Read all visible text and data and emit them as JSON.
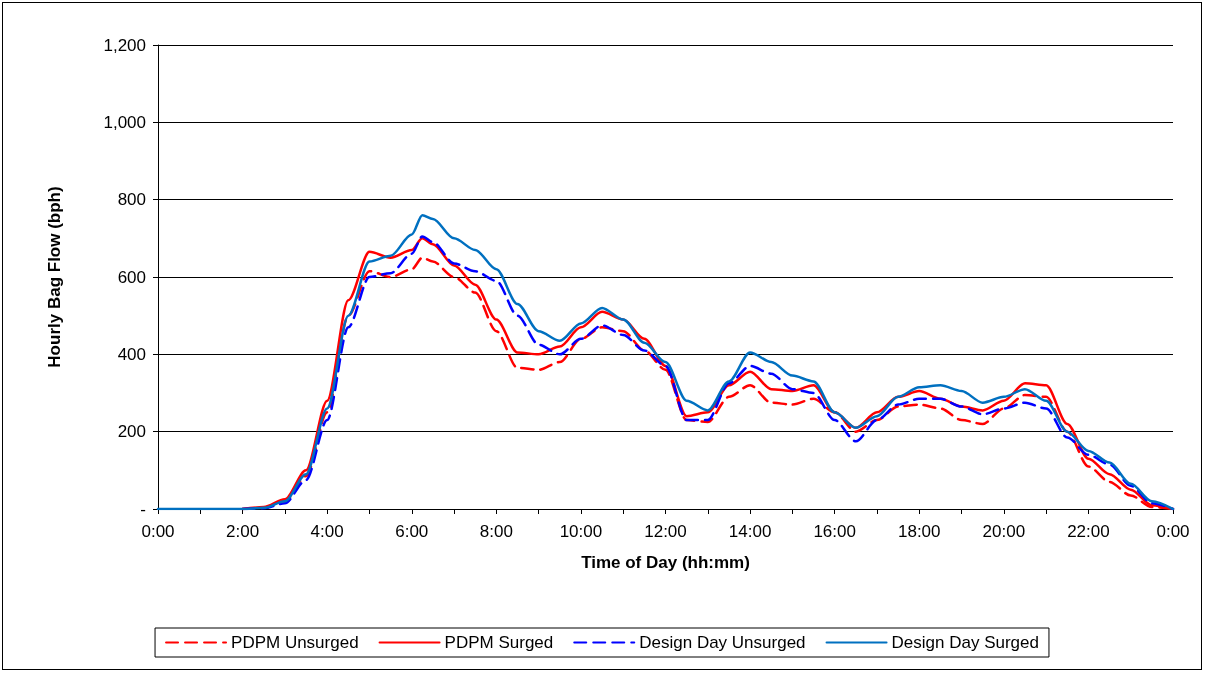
{
  "chart_data": {
    "type": "line",
    "xlabel": "Time of Day (hh:mm)",
    "ylabel": "Hourly Bag Flow (bph)",
    "x": [
      0,
      0.5,
      1,
      1.5,
      2,
      2.5,
      3,
      3.5,
      4,
      4.5,
      5,
      5.5,
      6,
      6.25,
      6.5,
      7,
      7.5,
      8,
      8.5,
      9,
      9.5,
      10,
      10.5,
      11,
      11.5,
      12,
      12.5,
      13,
      13.5,
      14,
      14.5,
      15,
      15.5,
      16,
      16.5,
      17,
      17.5,
      18,
      18.5,
      19,
      19.5,
      20,
      20.5,
      21,
      21.5,
      22,
      22.5,
      23,
      23.5,
      24
    ],
    "series": [
      {
        "name": "PDPM Unsurged",
        "color": "#ff0000",
        "line_style": "dashed",
        "values": [
          null,
          null,
          null,
          null,
          0,
          3,
          20,
          85,
          250,
          500,
          615,
          600,
          620,
          650,
          640,
          600,
          560,
          460,
          365,
          360,
          380,
          440,
          470,
          460,
          410,
          360,
          230,
          225,
          290,
          320,
          275,
          270,
          285,
          250,
          200,
          230,
          265,
          270,
          260,
          230,
          220,
          260,
          295,
          290,
          200,
          110,
          70,
          35,
          5,
          0
        ]
      },
      {
        "name": "PDPM Surged",
        "color": "#ff0000",
        "line_style": "solid",
        "values": [
          null,
          null,
          null,
          null,
          0,
          5,
          25,
          100,
          280,
          540,
          665,
          650,
          670,
          700,
          685,
          630,
          580,
          490,
          405,
          400,
          420,
          470,
          510,
          490,
          440,
          370,
          240,
          250,
          320,
          355,
          310,
          305,
          320,
          250,
          210,
          250,
          290,
          305,
          285,
          265,
          255,
          280,
          325,
          320,
          220,
          130,
          90,
          50,
          10,
          0
        ]
      },
      {
        "name": "Design Day Unsurged",
        "color": "#0000ff",
        "line_style": "dashed",
        "values": [
          null,
          null,
          null,
          null,
          0,
          2,
          15,
          75,
          230,
          470,
          600,
          610,
          660,
          705,
          690,
          635,
          615,
          590,
          500,
          425,
          400,
          440,
          475,
          450,
          410,
          370,
          230,
          230,
          325,
          370,
          350,
          310,
          300,
          230,
          175,
          230,
          270,
          285,
          285,
          265,
          245,
          260,
          275,
          260,
          185,
          140,
          115,
          60,
          15,
          0
        ]
      },
      {
        "name": "Design Day Surged",
        "color": "#0070c0",
        "line_style": "solid",
        "values": [
          0,
          0,
          0,
          0,
          0,
          3,
          20,
          90,
          260,
          500,
          640,
          655,
          710,
          760,
          750,
          700,
          670,
          620,
          530,
          460,
          435,
          480,
          520,
          490,
          430,
          380,
          280,
          255,
          330,
          405,
          380,
          345,
          330,
          250,
          210,
          240,
          290,
          315,
          320,
          305,
          275,
          290,
          310,
          280,
          200,
          150,
          120,
          65,
          20,
          0
        ]
      }
    ],
    "xlim": [
      0,
      24
    ],
    "xticks": [
      {
        "value": 0,
        "label": "0:00"
      },
      {
        "value": 1,
        "label": null
      },
      {
        "value": 2,
        "label": "2:00"
      },
      {
        "value": 3,
        "label": null
      },
      {
        "value": 4,
        "label": "4:00"
      },
      {
        "value": 5,
        "label": null
      },
      {
        "value": 6,
        "label": "6:00"
      },
      {
        "value": 7,
        "label": null
      },
      {
        "value": 8,
        "label": "8:00"
      },
      {
        "value": 9,
        "label": null
      },
      {
        "value": 10,
        "label": "10:00"
      },
      {
        "value": 11,
        "label": null
      },
      {
        "value": 12,
        "label": "12:00"
      },
      {
        "value": 13,
        "label": null
      },
      {
        "value": 14,
        "label": "14:00"
      },
      {
        "value": 15,
        "label": null
      },
      {
        "value": 16,
        "label": "16:00"
      },
      {
        "value": 17,
        "label": null
      },
      {
        "value": 18,
        "label": "18:00"
      },
      {
        "value": 19,
        "label": null
      },
      {
        "value": 20,
        "label": "20:00"
      },
      {
        "value": 21,
        "label": null
      },
      {
        "value": 22,
        "label": "22:00"
      },
      {
        "value": 23,
        "label": null
      },
      {
        "value": 24,
        "label": "0:00"
      }
    ],
    "ylim": [
      0,
      1200
    ],
    "yticks": [
      {
        "value": 0,
        "label": "-"
      },
      200,
      400,
      600,
      800,
      {
        "value": 1000,
        "label": "1,000"
      },
      {
        "value": 1200,
        "label": "1,200"
      }
    ],
    "grid": "y",
    "legend": "bottom",
    "marker": "none"
  }
}
